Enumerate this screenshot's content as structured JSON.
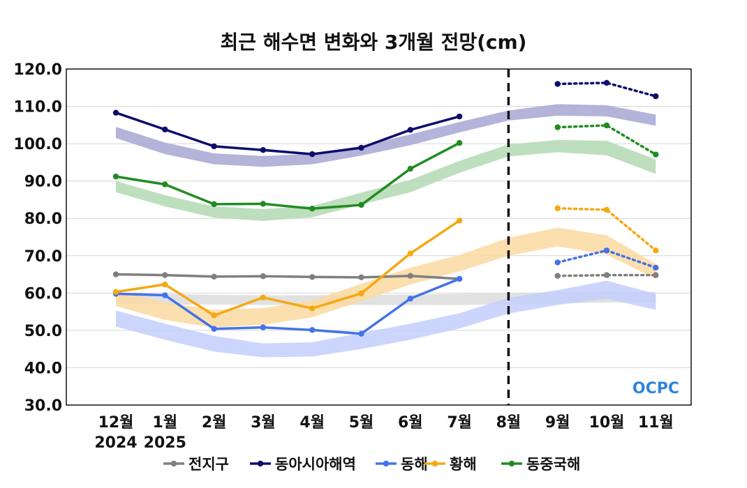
{
  "chart_data": {
    "type": "line",
    "title": "최근 해수면 변화와 3개월 전망(cm)",
    "categories": [
      "12월",
      "1월",
      "2월",
      "3월",
      "4월",
      "5월",
      "6월",
      "7월",
      "8월",
      "9월",
      "10월",
      "11월"
    ],
    "year_labels": [
      "2024",
      "2025"
    ],
    "ylim": [
      30,
      120
    ],
    "yticks": [
      30,
      40,
      50,
      60,
      70,
      80,
      90,
      100,
      110,
      120
    ],
    "ytick_labels": [
      "30.0",
      "40.0",
      "50.0",
      "60.0",
      "70.0",
      "80.0",
      "90.0",
      "100.0",
      "110.0",
      "120.0"
    ],
    "forecast_divider_index": 8,
    "grid": "horizontal",
    "legend_position": "bottom",
    "series": [
      {
        "name": "전지구",
        "color": "#7f7f7f",
        "observed": [
          65.0,
          64.8,
          64.4,
          64.5,
          64.3,
          64.2,
          64.6,
          63.8
        ],
        "forecast": [
          64.6,
          64.8,
          64.8
        ],
        "band_color": "#dcdcdc",
        "band_low": [
          57.2,
          56.9,
          56.9,
          56.8,
          56.8,
          56.8,
          56.8,
          56.8,
          57.0,
          57.2,
          57.5,
          57.3
        ],
        "band_high": [
          60.0,
          59.8,
          59.5,
          59.4,
          59.4,
          59.5,
          59.6,
          59.8,
          60.0,
          60.2,
          60.5,
          60.3
        ]
      },
      {
        "name": "동아시아해역",
        "color": "#0d0d6b",
        "observed": [
          108.3,
          103.8,
          99.3,
          98.3,
          97.2,
          98.9,
          103.7,
          107.3
        ],
        "forecast": [
          116.0,
          116.3,
          112.7
        ],
        "band_color": "#a7a6d2",
        "band_low": [
          101.5,
          97.2,
          94.5,
          93.8,
          94.5,
          96.8,
          99.6,
          103.0,
          106.2,
          107.5,
          107.3,
          104.8
        ],
        "band_high": [
          104.5,
          100.3,
          97.4,
          96.7,
          97.3,
          99.4,
          102.5,
          105.8,
          108.9,
          110.6,
          110.3,
          107.8
        ]
      },
      {
        "name": "동해",
        "color": "#4472e8",
        "observed": [
          59.8,
          59.4,
          50.4,
          50.8,
          50.1,
          49.1,
          58.5,
          63.8
        ],
        "forecast": [
          68.2,
          71.4,
          66.8
        ],
        "band_color": "#c3cffc",
        "band_low": [
          51.0,
          47.5,
          44.3,
          42.8,
          43.0,
          45.0,
          47.5,
          50.5,
          54.5,
          56.8,
          58.5,
          55.5
        ],
        "band_high": [
          55.3,
          51.8,
          48.5,
          46.5,
          46.8,
          49.3,
          51.8,
          54.6,
          58.7,
          60.8,
          63.3,
          59.8
        ]
      },
      {
        "name": "황해",
        "color": "#f5a812",
        "observed": [
          60.3,
          62.3,
          54.0,
          58.8,
          55.9,
          59.9,
          70.6,
          79.4
        ],
        "forecast": [
          82.7,
          82.3,
          71.4
        ],
        "band_color": "#fcd9a0",
        "band_low": [
          56.5,
          52.8,
          50.8,
          51.5,
          53.5,
          57.8,
          62.3,
          65.8,
          70.0,
          72.5,
          70.3,
          63.8
        ],
        "band_high": [
          60.5,
          57.5,
          55.5,
          56.0,
          58.0,
          62.5,
          66.8,
          70.2,
          74.8,
          77.5,
          75.5,
          67.8
        ]
      },
      {
        "name": "동중국해",
        "color": "#228b22",
        "observed": [
          91.2,
          89.1,
          83.8,
          83.9,
          82.6,
          83.6,
          93.3,
          100.2
        ],
        "forecast": [
          104.4,
          104.9,
          97.1
        ],
        "band_color": "#b3d9b3",
        "band_low": [
          87.0,
          83.2,
          80.2,
          79.3,
          80.3,
          83.7,
          87.0,
          92.2,
          96.6,
          97.7,
          96.9,
          91.9
        ],
        "band_high": [
          90.0,
          86.2,
          83.2,
          82.5,
          83.3,
          86.9,
          90.3,
          95.4,
          99.8,
          101.0,
          100.8,
          95.8
        ]
      }
    ]
  },
  "logo": {
    "text": "OCPC"
  }
}
